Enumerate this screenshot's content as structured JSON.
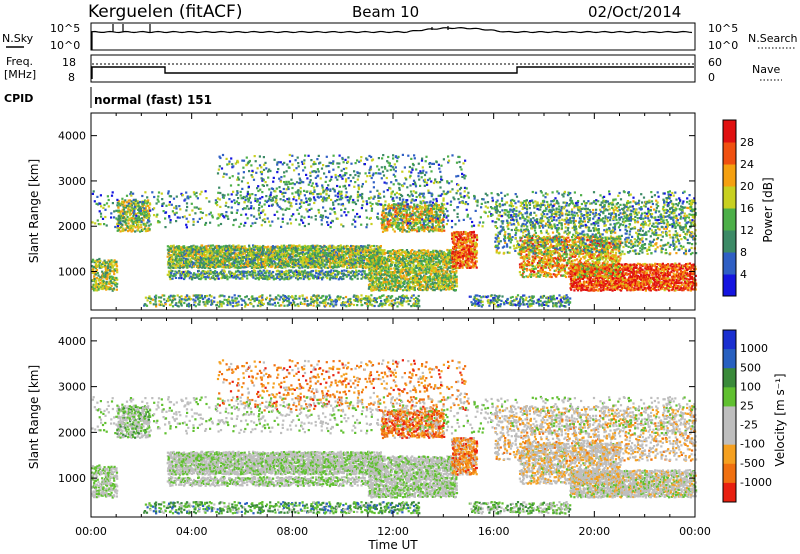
{
  "header": {
    "title": "Kerguelen (fitACF)",
    "beam": "Beam 10",
    "date": "02/Oct/2014"
  },
  "nsky_panel": {
    "left_label": "N.Sky",
    "right_label": "N.Search",
    "left_ticks": [
      "10^5",
      "10^0"
    ],
    "right_ticks": [
      "10^5",
      "10^0"
    ]
  },
  "freq_panel": {
    "left_label_line1": "Freq.",
    "left_label_line2": "[MHz]",
    "right_label": "Nave",
    "left_ticks": [
      "18",
      "8"
    ],
    "right_ticks": [
      "60",
      "0"
    ]
  },
  "cpid_panel": {
    "label": "CPID",
    "text": "normal (fast) 151"
  },
  "colors": {
    "power_scale": [
      "#1515e0",
      "#2f5fc4",
      "#3c8a66",
      "#4caf48",
      "#c8d020",
      "#f5a010",
      "#f05010",
      "#e01010"
    ],
    "velocity_scale": [
      "#1a2fd0",
      "#2860c0",
      "#3a8a3a",
      "#60c030",
      "#bebebe",
      "#bebebe",
      "#f5a020",
      "#f07010",
      "#e82010"
    ]
  },
  "chart_data": [
    {
      "type": "heatmap",
      "name": "power",
      "xlabel": "",
      "ylabel": "Slant Range [km]",
      "xlim": [
        "00:00",
        "00:00"
      ],
      "ylim": [
        150,
        4500
      ],
      "x_ticks": [
        "00:00",
        "04:00",
        "08:00",
        "12:00",
        "16:00",
        "20:00",
        "00:00"
      ],
      "y_ticks": [
        1000,
        2000,
        3000,
        4000
      ],
      "colorbar_label": "Power [dB]",
      "colorbar_ticks": [
        4,
        8,
        12,
        16,
        20,
        24,
        28
      ]
    },
    {
      "type": "heatmap",
      "name": "velocity",
      "xlabel": "Time UT",
      "ylabel": "Slant Range [km]",
      "xlim": [
        "00:00",
        "00:00"
      ],
      "ylim": [
        150,
        4500
      ],
      "x_ticks": [
        "00:00",
        "04:00",
        "08:00",
        "12:00",
        "16:00",
        "20:00",
        "00:00"
      ],
      "y_ticks": [
        1000,
        2000,
        3000,
        4000
      ],
      "colorbar_label": "Velocity [m s⁻¹]",
      "colorbar_ticks": [
        1000,
        500,
        100,
        25,
        -25,
        -100,
        -500,
        -1000
      ]
    }
  ]
}
